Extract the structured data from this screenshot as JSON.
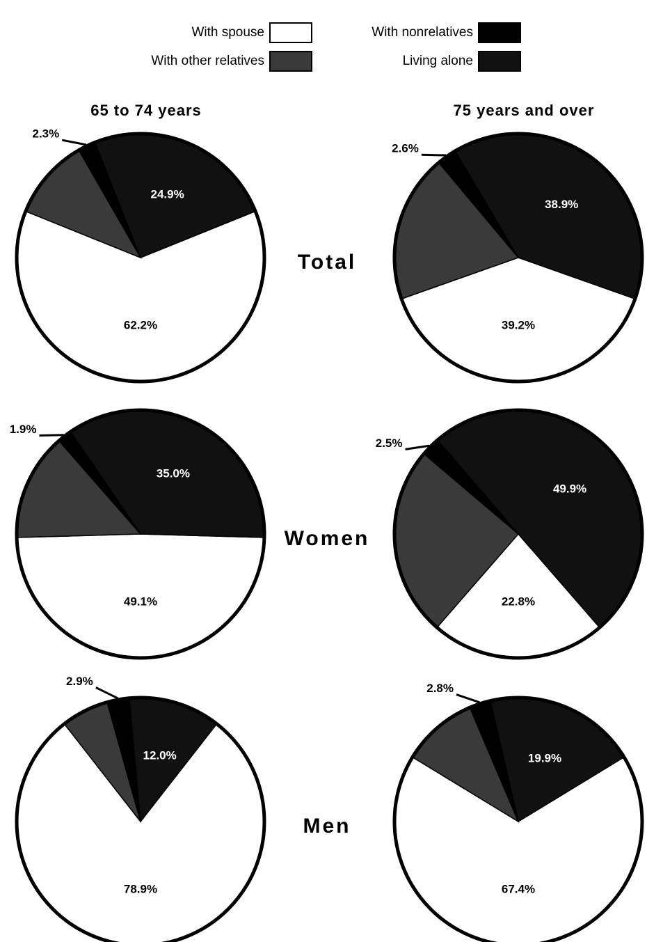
{
  "legend": {
    "categories": [
      "With spouse",
      "With other relatives",
      "With nonrelatives",
      "Living alone"
    ],
    "colors": [
      "#ffffff",
      "#3a3a3a",
      "#000000",
      "#111111"
    ]
  },
  "column_titles": [
    "65 to 74 years",
    "75 years and over"
  ],
  "row_titles": [
    "Total",
    "Women",
    "Men"
  ],
  "chart_data": [
    {
      "type": "pie",
      "values": [
        62.2,
        10.6,
        2.3,
        24.9
      ],
      "value_labels": [
        "62.2%",
        null,
        "2.3%",
        "24.9%"
      ]
    },
    {
      "type": "pie",
      "values": [
        39.2,
        19.3,
        2.6,
        38.9
      ],
      "value_labels": [
        "39.2%",
        null,
        "2.6%",
        "38.9%"
      ]
    },
    {
      "type": "pie",
      "values": [
        49.1,
        14.0,
        1.9,
        35.0
      ],
      "value_labels": [
        "49.1%",
        null,
        "1.9%",
        "35.0%"
      ]
    },
    {
      "type": "pie",
      "values": [
        22.8,
        24.8,
        2.5,
        49.9
      ],
      "value_labels": [
        "22.8%",
        null,
        "2.5%",
        "49.9%"
      ]
    },
    {
      "type": "pie",
      "values": [
        78.9,
        6.2,
        2.9,
        12.0
      ],
      "value_labels": [
        "78.9%",
        null,
        "2.9%",
        "12.0%"
      ]
    },
    {
      "type": "pie",
      "values": [
        67.4,
        9.9,
        2.8,
        19.9
      ],
      "value_labels": [
        "67.4%",
        null,
        "2.8%",
        "19.9%"
      ]
    }
  ]
}
